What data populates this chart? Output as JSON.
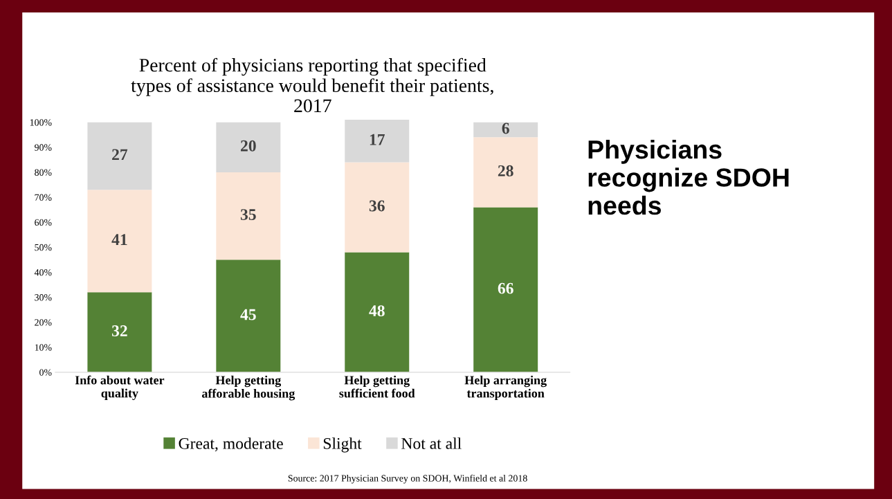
{
  "chart_data": {
    "type": "bar",
    "title": "Percent of physicians reporting that specified\ntypes of assistance would benefit their patients,\n2017",
    "categories": [
      "Info about water\nquality",
      "Help getting\nafforable housing",
      "Help getting\nsufficient food",
      "Help arranging\ntransportation"
    ],
    "stacked": true,
    "series": [
      {
        "name": "Great, moderate",
        "color": "#548235",
        "values": [
          32,
          45,
          48,
          66
        ]
      },
      {
        "name": "Slight",
        "color": "#fbe5d6",
        "values": [
          41,
          35,
          36,
          28
        ]
      },
      {
        "name": "Not at all",
        "color": "#d9d9d9",
        "values": [
          27,
          20,
          17,
          6
        ]
      }
    ],
    "ylim": [
      0,
      101
    ],
    "yticks": [
      {
        "value": 0,
        "label": "0%"
      },
      {
        "value": 10,
        "label": "10%"
      },
      {
        "value": 20,
        "label": "20%"
      },
      {
        "value": 30,
        "label": "30%"
      },
      {
        "value": 40,
        "label": "40%"
      },
      {
        "value": 50,
        "label": "50%"
      },
      {
        "value": 60,
        "label": "60%"
      },
      {
        "value": 70,
        "label": "70%"
      },
      {
        "value": 80,
        "label": "80%"
      },
      {
        "value": 90,
        "label": "90%"
      },
      {
        "value": 100,
        "label": "100%"
      }
    ],
    "data_labels": true,
    "grid": false,
    "legend": "bottom",
    "annotations": [
      "Physicians\nrecognize SDOH\nneeds",
      "Source: 2017 Physician Survey on SDOH, Winfield et al 2018"
    ]
  }
}
